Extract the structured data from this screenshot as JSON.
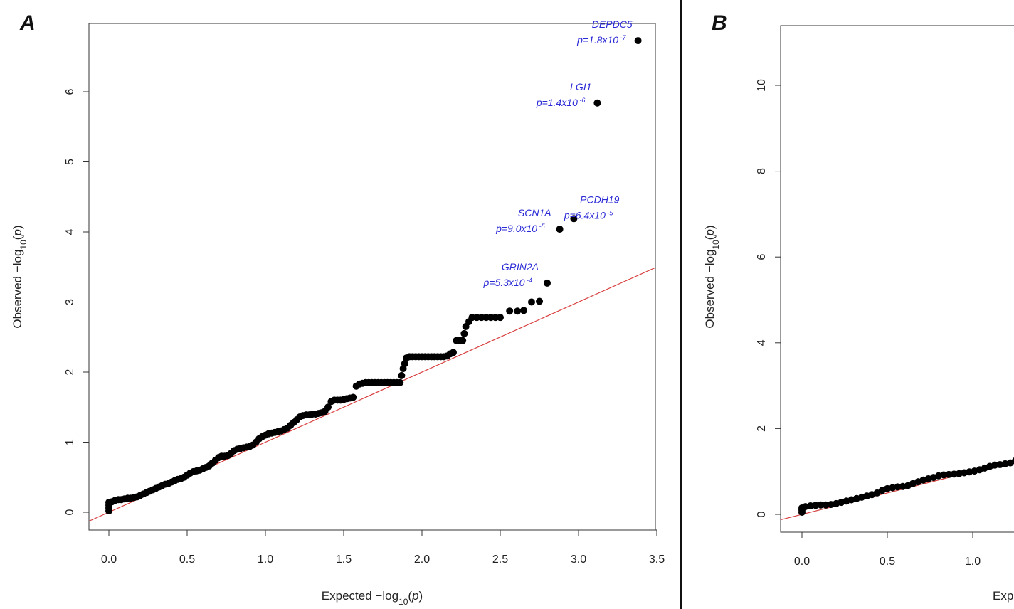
{
  "chart_data": [
    {
      "panel": "A",
      "type": "scatter",
      "xlabel": "Expected  -log10(p)",
      "ylabel": "Observed  -log10(p)",
      "xlim": [
        -0.12,
        3.5
      ],
      "ylim": [
        -0.15,
        7.0
      ],
      "xticks": [
        "0.0",
        "0.5",
        "1.0",
        "1.5",
        "2.0",
        "2.5",
        "3.0",
        "3.5"
      ],
      "yticks": [
        "0",
        "1",
        "2",
        "3",
        "4",
        "5",
        "6"
      ],
      "reference_line": {
        "slope": 1,
        "intercept": 0,
        "color": "#d94040"
      },
      "points": [
        [
          0.0,
          0.02
        ],
        [
          0.0,
          0.06
        ],
        [
          0.0,
          0.1
        ],
        [
          0.0,
          0.14
        ],
        [
          0.02,
          0.15
        ],
        [
          0.04,
          0.17
        ],
        [
          0.06,
          0.18
        ],
        [
          0.08,
          0.18
        ],
        [
          0.1,
          0.19
        ],
        [
          0.12,
          0.2
        ],
        [
          0.14,
          0.2
        ],
        [
          0.16,
          0.21
        ],
        [
          0.18,
          0.22
        ],
        [
          0.2,
          0.24
        ],
        [
          0.22,
          0.26
        ],
        [
          0.24,
          0.28
        ],
        [
          0.26,
          0.3
        ],
        [
          0.28,
          0.32
        ],
        [
          0.3,
          0.34
        ],
        [
          0.32,
          0.36
        ],
        [
          0.34,
          0.38
        ],
        [
          0.36,
          0.4
        ],
        [
          0.38,
          0.41
        ],
        [
          0.4,
          0.43
        ],
        [
          0.42,
          0.45
        ],
        [
          0.44,
          0.47
        ],
        [
          0.46,
          0.48
        ],
        [
          0.48,
          0.5
        ],
        [
          0.5,
          0.53
        ],
        [
          0.52,
          0.56
        ],
        [
          0.54,
          0.58
        ],
        [
          0.56,
          0.59
        ],
        [
          0.58,
          0.6
        ],
        [
          0.6,
          0.62
        ],
        [
          0.62,
          0.64
        ],
        [
          0.64,
          0.66
        ],
        [
          0.66,
          0.7
        ],
        [
          0.68,
          0.74
        ],
        [
          0.7,
          0.78
        ],
        [
          0.72,
          0.8
        ],
        [
          0.74,
          0.8
        ],
        [
          0.76,
          0.81
        ],
        [
          0.78,
          0.84
        ],
        [
          0.8,
          0.88
        ],
        [
          0.82,
          0.9
        ],
        [
          0.84,
          0.91
        ],
        [
          0.86,
          0.92
        ],
        [
          0.88,
          0.93
        ],
        [
          0.9,
          0.94
        ],
        [
          0.92,
          0.96
        ],
        [
          0.94,
          1.0
        ],
        [
          0.96,
          1.05
        ],
        [
          0.98,
          1.08
        ],
        [
          1.0,
          1.1
        ],
        [
          1.02,
          1.12
        ],
        [
          1.04,
          1.13
        ],
        [
          1.06,
          1.14
        ],
        [
          1.08,
          1.15
        ],
        [
          1.1,
          1.16
        ],
        [
          1.12,
          1.18
        ],
        [
          1.14,
          1.2
        ],
        [
          1.16,
          1.24
        ],
        [
          1.18,
          1.28
        ],
        [
          1.2,
          1.32
        ],
        [
          1.22,
          1.36
        ],
        [
          1.24,
          1.38
        ],
        [
          1.26,
          1.39
        ],
        [
          1.28,
          1.39
        ],
        [
          1.3,
          1.4
        ],
        [
          1.32,
          1.4
        ],
        [
          1.34,
          1.41
        ],
        [
          1.36,
          1.42
        ],
        [
          1.38,
          1.44
        ],
        [
          1.4,
          1.5
        ],
        [
          1.42,
          1.58
        ],
        [
          1.44,
          1.6
        ],
        [
          1.46,
          1.6
        ],
        [
          1.48,
          1.6
        ],
        [
          1.5,
          1.61
        ],
        [
          1.52,
          1.62
        ],
        [
          1.54,
          1.63
        ],
        [
          1.56,
          1.64
        ],
        [
          1.58,
          1.8
        ],
        [
          1.6,
          1.83
        ],
        [
          1.62,
          1.84
        ],
        [
          1.64,
          1.85
        ],
        [
          1.66,
          1.85
        ],
        [
          1.68,
          1.85
        ],
        [
          1.7,
          1.85
        ],
        [
          1.72,
          1.85
        ],
        [
          1.74,
          1.85
        ],
        [
          1.76,
          1.85
        ],
        [
          1.78,
          1.85
        ],
        [
          1.8,
          1.85
        ],
        [
          1.82,
          1.85
        ],
        [
          1.84,
          1.85
        ],
        [
          1.86,
          1.85
        ],
        [
          1.87,
          1.95
        ],
        [
          1.88,
          2.05
        ],
        [
          1.89,
          2.12
        ],
        [
          1.9,
          2.2
        ],
        [
          1.92,
          2.22
        ],
        [
          1.94,
          2.22
        ],
        [
          1.96,
          2.22
        ],
        [
          1.98,
          2.22
        ],
        [
          2.0,
          2.22
        ],
        [
          2.02,
          2.22
        ],
        [
          2.04,
          2.22
        ],
        [
          2.06,
          2.22
        ],
        [
          2.08,
          2.22
        ],
        [
          2.1,
          2.22
        ],
        [
          2.12,
          2.22
        ],
        [
          2.14,
          2.22
        ],
        [
          2.16,
          2.23
        ],
        [
          2.18,
          2.26
        ],
        [
          2.2,
          2.28
        ],
        [
          2.22,
          2.45
        ],
        [
          2.24,
          2.45
        ],
        [
          2.26,
          2.45
        ],
        [
          2.27,
          2.55
        ],
        [
          2.28,
          2.65
        ],
        [
          2.3,
          2.72
        ],
        [
          2.32,
          2.78
        ],
        [
          2.35,
          2.78
        ],
        [
          2.38,
          2.78
        ],
        [
          2.41,
          2.78
        ],
        [
          2.44,
          2.78
        ],
        [
          2.47,
          2.78
        ],
        [
          2.5,
          2.78
        ],
        [
          2.56,
          2.87
        ],
        [
          2.61,
          2.87
        ],
        [
          2.65,
          2.88
        ],
        [
          2.7,
          3.0
        ],
        [
          2.75,
          3.01
        ],
        [
          2.8,
          3.27
        ],
        [
          2.88,
          4.04
        ],
        [
          2.97,
          4.19
        ],
        [
          3.12,
          5.84
        ],
        [
          3.38,
          6.73
        ]
      ],
      "annotations": [
        {
          "gene": "DEPDC5",
          "p": "p=1.8x10",
          "exp": "-7",
          "point": [
            3.38,
            6.73
          ]
        },
        {
          "gene": "LGI1",
          "p": "p=1.4x10",
          "exp": "-6",
          "point": [
            3.12,
            5.84
          ]
        },
        {
          "gene": "PCDH19",
          "p": "p=6.4x10",
          "exp": "-5",
          "point": [
            2.97,
            4.19
          ]
        },
        {
          "gene": "SCN1A",
          "p": "p=9.0x10",
          "exp": "-5",
          "point": [
            2.88,
            4.04
          ]
        },
        {
          "gene": "GRIN2A",
          "p": "p=5.3x10",
          "exp": "-4",
          "point": [
            2.8,
            3.27
          ]
        }
      ]
    },
    {
      "panel": "B",
      "type": "scatter",
      "xlabel": "Exp",
      "ylabel": "Observed  -log10(p)",
      "xlim": [
        -0.12,
        1.3
      ],
      "ylim": [
        -0.4,
        11.5
      ],
      "xticks": [
        "0.0",
        "0.5",
        "1.0"
      ],
      "yticks": [
        "0",
        "2",
        "4",
        "6",
        "8",
        "10"
      ],
      "reference_line": {
        "slope": 1,
        "intercept": 0,
        "color": "#d94040"
      },
      "points": [
        [
          0.0,
          0.05
        ],
        [
          0.0,
          0.1
        ],
        [
          0.0,
          0.15
        ],
        [
          0.02,
          0.18
        ],
        [
          0.05,
          0.2
        ],
        [
          0.08,
          0.21
        ],
        [
          0.11,
          0.22
        ],
        [
          0.14,
          0.22
        ],
        [
          0.17,
          0.23
        ],
        [
          0.2,
          0.25
        ],
        [
          0.23,
          0.28
        ],
        [
          0.26,
          0.31
        ],
        [
          0.29,
          0.34
        ],
        [
          0.32,
          0.37
        ],
        [
          0.35,
          0.4
        ],
        [
          0.38,
          0.43
        ],
        [
          0.41,
          0.46
        ],
        [
          0.44,
          0.5
        ],
        [
          0.47,
          0.56
        ],
        [
          0.5,
          0.6
        ],
        [
          0.53,
          0.62
        ],
        [
          0.56,
          0.64
        ],
        [
          0.59,
          0.65
        ],
        [
          0.62,
          0.67
        ],
        [
          0.65,
          0.72
        ],
        [
          0.68,
          0.76
        ],
        [
          0.71,
          0.8
        ],
        [
          0.74,
          0.83
        ],
        [
          0.77,
          0.86
        ],
        [
          0.8,
          0.9
        ],
        [
          0.83,
          0.92
        ],
        [
          0.86,
          0.93
        ],
        [
          0.89,
          0.94
        ],
        [
          0.92,
          0.95
        ],
        [
          0.95,
          0.97
        ],
        [
          0.98,
          0.99
        ],
        [
          1.01,
          1.01
        ],
        [
          1.04,
          1.04
        ],
        [
          1.07,
          1.08
        ],
        [
          1.1,
          1.12
        ],
        [
          1.13,
          1.15
        ],
        [
          1.16,
          1.16
        ],
        [
          1.19,
          1.18
        ],
        [
          1.22,
          1.2
        ],
        [
          1.25,
          1.25
        ]
      ]
    }
  ]
}
